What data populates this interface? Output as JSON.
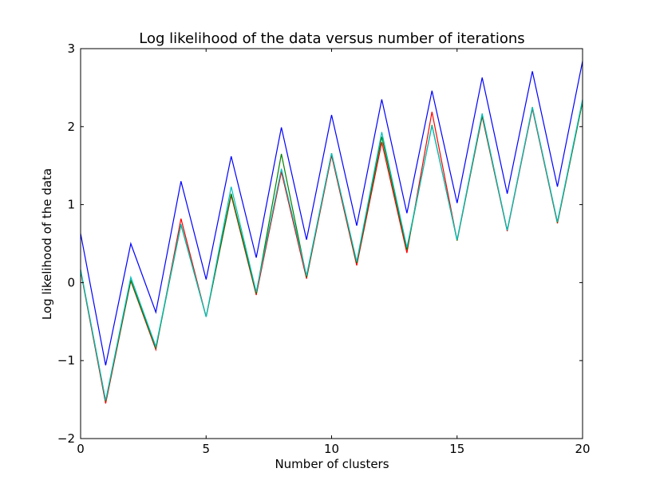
{
  "chart_data": {
    "type": "line",
    "title": "Log likelihood of the data versus number of iterations",
    "xlabel": "Number of clusters",
    "ylabel": "Log likelihood of the data",
    "xlim": [
      0,
      20
    ],
    "ylim": [
      -2,
      3
    ],
    "xticks": [
      0,
      5,
      10,
      15,
      20
    ],
    "yticks": [
      -2,
      -1,
      0,
      1,
      2,
      3
    ],
    "xtick_labels": [
      "0",
      "5",
      "10",
      "15",
      "20"
    ],
    "ytick_labels": [
      "−2",
      "−1",
      "0",
      "1",
      "2",
      "3"
    ],
    "grid": false,
    "legend": "none",
    "x": [
      0,
      1,
      2,
      3,
      4,
      5,
      6,
      7,
      8,
      9,
      10,
      11,
      12,
      13,
      14,
      15,
      16,
      17,
      18,
      19,
      20
    ],
    "series": [
      {
        "color": "#0000ff",
        "values": [
          0.63,
          -1.06,
          0.5,
          -0.38,
          1.3,
          0.04,
          1.62,
          0.32,
          1.99,
          0.55,
          2.15,
          0.73,
          2.35,
          0.89,
          2.46,
          1.02,
          2.63,
          1.14,
          2.71,
          1.23,
          2.84
        ]
      },
      {
        "color": "#ff0000",
        "values": [
          0.15,
          -1.55,
          0.02,
          -0.86,
          0.82,
          -0.44,
          1.12,
          -0.16,
          1.42,
          0.05,
          1.63,
          0.22,
          1.8,
          0.38,
          2.19,
          0.54,
          2.13,
          0.66,
          2.23,
          0.76,
          2.32
        ]
      },
      {
        "color": "#008000",
        "values": [
          0.16,
          -1.52,
          0.03,
          -0.84,
          0.74,
          -0.44,
          1.14,
          -0.14,
          1.65,
          0.07,
          1.66,
          0.25,
          1.87,
          0.42,
          2.02,
          0.54,
          2.15,
          0.67,
          2.25,
          0.77,
          2.32
        ]
      },
      {
        "color": "#00bfbf",
        "values": [
          0.17,
          -1.51,
          0.07,
          -0.82,
          0.75,
          -0.44,
          1.23,
          -0.12,
          1.46,
          0.09,
          1.66,
          0.27,
          1.93,
          0.45,
          2.01,
          0.55,
          2.17,
          0.67,
          2.25,
          0.78,
          2.35
        ]
      }
    ]
  }
}
